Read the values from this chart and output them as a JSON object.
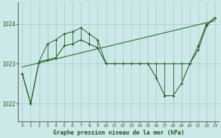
{
  "title": "Graphe pression niveau de la mer (hPa)",
  "x_labels": [
    "0",
    "1",
    "2",
    "3",
    "4",
    "5",
    "6",
    "7",
    "8",
    "9",
    "10",
    "11",
    "12",
    "13",
    "14",
    "15",
    "16",
    "17",
    "18",
    "19",
    "20",
    "21",
    "22",
    "23"
  ],
  "y_ticks": [
    1022,
    1023,
    1024
  ],
  "ylim": [
    1021.55,
    1024.55
  ],
  "xlim": [
    -0.5,
    23.5
  ],
  "bg_color": "#cce8e8",
  "grid_color": "#aacccc",
  "line_color": "#1a5c1a",
  "marker_color": "#1a5c1a",
  "trend_color": "#2e7d2e",
  "pressure_data": [
    1022.75,
    1022.0,
    1023.05,
    1023.1,
    1023.15,
    1023.45,
    1023.5,
    1023.6,
    1023.5,
    1023.4,
    1023.0,
    1023.0,
    1023.0,
    1023.0,
    1023.0,
    1023.0,
    1022.65,
    1022.2,
    1022.2,
    1022.5,
    1023.0,
    1023.35,
    1023.95,
    1024.15
  ],
  "envelope_upper": [
    1022.75,
    1022.0,
    1023.05,
    1023.5,
    1023.6,
    1023.75,
    1023.8,
    1023.9,
    1023.75,
    1023.6,
    1023.0,
    1023.0,
    1023.0,
    1023.0,
    1023.0,
    1023.0,
    1023.0,
    1023.0,
    1023.0,
    1023.0,
    1023.0,
    1023.45,
    1024.0,
    1024.15
  ],
  "trend_line": [
    [
      0,
      1022.92
    ],
    [
      23,
      1024.08
    ]
  ]
}
